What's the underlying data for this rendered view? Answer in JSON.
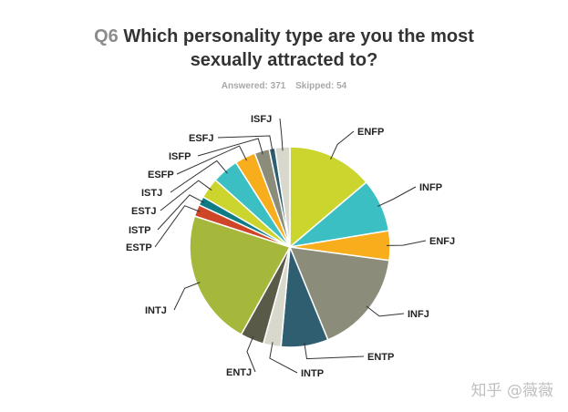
{
  "header": {
    "q_label": "Q6",
    "title_line1": "Which personality type are you the most",
    "title_line2": "sexually attracted to?",
    "answered": "Answered: 371",
    "skipped": "Skipped: 54"
  },
  "watermark": "知乎 @薇薇",
  "chart_data": {
    "type": "pie",
    "title": "Which personality type are you the most sexually attracted to?",
    "slices": [
      {
        "label": "ENFP",
        "value": 14.5,
        "color": "#cbd52e"
      },
      {
        "label": "INFP",
        "value": 9.0,
        "color": "#3cbfc2"
      },
      {
        "label": "ENFJ",
        "value": 5.0,
        "color": "#f7ad1c"
      },
      {
        "label": "INFJ",
        "value": 17.5,
        "color": "#8c8c7a"
      },
      {
        "label": "ENTP",
        "value": 8.0,
        "color": "#2e5e70"
      },
      {
        "label": "INTP",
        "value": 3.0,
        "color": "#d8d8cc"
      },
      {
        "label": "ENTJ",
        "value": 4.0,
        "color": "#5a5a48"
      },
      {
        "label": "INTJ",
        "value": 23.0,
        "color": "#a6b83c"
      },
      {
        "label": "ESTP",
        "value": 2.0,
        "color": "#cf4527"
      },
      {
        "label": "ISTP",
        "value": 1.5,
        "color": "#0e7b85"
      },
      {
        "label": "ESTJ",
        "value": 3.5,
        "color": "#cbd52e"
      },
      {
        "label": "ISTJ",
        "value": 4.5,
        "color": "#3cbfc2"
      },
      {
        "label": "ESFP",
        "value": 3.5,
        "color": "#f7ad1c"
      },
      {
        "label": "ISFP",
        "value": 2.5,
        "color": "#8c8c7a"
      },
      {
        "label": "ESFJ",
        "value": 1.0,
        "color": "#2e5e70"
      },
      {
        "label": "ISFJ",
        "value": 2.5,
        "color": "#d8d8cc"
      }
    ]
  }
}
